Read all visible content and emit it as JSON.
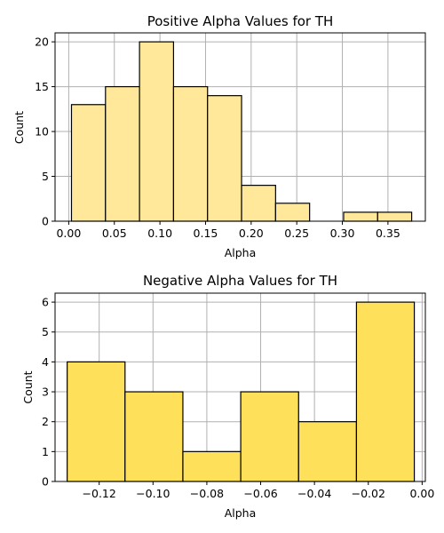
{
  "chart_data": [
    {
      "type": "bar",
      "title": "Positive Alpha Values for TH",
      "xlabel": "Alpha",
      "ylabel": "Count",
      "color": "#ffe899",
      "edge_color": "#000000",
      "grid": true,
      "xlim": [
        -0.015,
        0.391
      ],
      "ylim": [
        0,
        21
      ],
      "xticks": [
        0.0,
        0.05,
        0.1,
        0.15,
        0.2,
        0.25,
        0.3,
        0.35
      ],
      "xtick_labels": [
        "0.00",
        "0.05",
        "0.10",
        "0.15",
        "0.20",
        "0.25",
        "0.30",
        "0.35"
      ],
      "yticks": [
        0,
        5,
        10,
        15,
        20
      ],
      "ytick_labels": [
        "0",
        "5",
        "10",
        "15",
        "20"
      ],
      "bin_edges": [
        0.003,
        0.0403,
        0.0776,
        0.1149,
        0.1522,
        0.1895,
        0.2268,
        0.2641,
        0.3014,
        0.3387,
        0.376
      ],
      "values": [
        13,
        15,
        20,
        15,
        14,
        4,
        2,
        0,
        1,
        1
      ]
    },
    {
      "type": "bar",
      "title": "Negative Alpha Values for TH",
      "xlabel": "Alpha",
      "ylabel": "Count",
      "color": "#ffe05a",
      "edge_color": "#000000",
      "grid": true,
      "xlim": [
        -0.1364,
        0.0012
      ],
      "ylim": [
        0,
        6.3
      ],
      "xticks": [
        -0.12,
        -0.1,
        -0.08,
        -0.06,
        -0.04,
        -0.02,
        0.0
      ],
      "xtick_labels": [
        "−0.12",
        "−0.10",
        "−0.08",
        "−0.06",
        "−0.04",
        "−0.02",
        "0.00"
      ],
      "yticks": [
        0,
        1,
        2,
        3,
        4,
        5,
        6
      ],
      "ytick_labels": [
        "0",
        "1",
        "2",
        "3",
        "4",
        "5",
        "6"
      ],
      "bin_edges": [
        -0.1319,
        -0.1104,
        -0.0889,
        -0.0674,
        -0.0459,
        -0.0244,
        -0.0029
      ],
      "values": [
        4,
        3,
        1,
        3,
        2,
        6
      ]
    }
  ]
}
